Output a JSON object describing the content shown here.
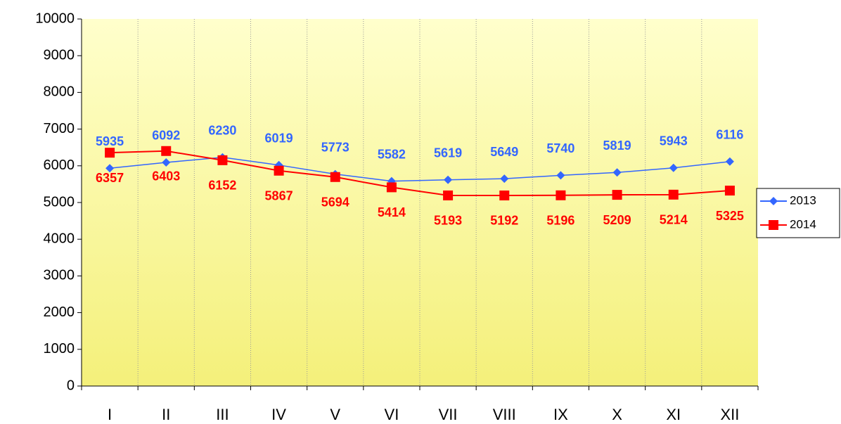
{
  "chart_data": {
    "type": "line",
    "categories": [
      "I",
      "II",
      "III",
      "IV",
      "V",
      "VI",
      "VII",
      "VIII",
      "IX",
      "X",
      "XI",
      "XII"
    ],
    "series": [
      {
        "name": "2013",
        "color": "#3366ff",
        "marker": "diamond",
        "values": [
          5935,
          6092,
          6230,
          6019,
          5773,
          5582,
          5619,
          5649,
          5740,
          5819,
          5943,
          6116
        ]
      },
      {
        "name": "2014",
        "color": "#ff0000",
        "marker": "square",
        "values": [
          6357,
          6403,
          6152,
          5867,
          5694,
          5414,
          5193,
          5192,
          5196,
          5209,
          5214,
          5325
        ]
      }
    ],
    "ylim": [
      0,
      10000
    ],
    "yticks": [
      0,
      1000,
      2000,
      3000,
      4000,
      5000,
      6000,
      7000,
      8000,
      9000,
      10000
    ],
    "legend": "right"
  }
}
